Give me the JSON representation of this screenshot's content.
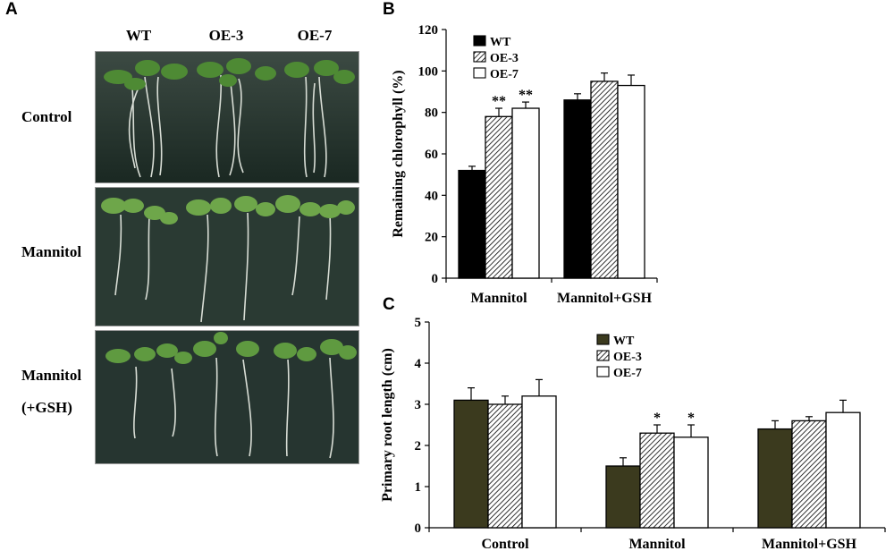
{
  "panelA": {
    "letter": "A",
    "columns": [
      "WT",
      "OE-3",
      "OE-7"
    ],
    "rows": [
      {
        "label": "Control",
        "label2": ""
      },
      {
        "label": "Mannitol",
        "label2": ""
      },
      {
        "label": "Mannitol",
        "label2": "(+GSH)"
      }
    ]
  },
  "chart_data": [
    {
      "panel": "B",
      "type": "bar",
      "categories": [
        "Mannitol",
        "Mannitol+GSH"
      ],
      "series": [
        {
          "name": "WT",
          "values": [
            52,
            86
          ],
          "errors": [
            2,
            3
          ]
        },
        {
          "name": "OE-3",
          "values": [
            78,
            95
          ],
          "errors": [
            4,
            4
          ]
        },
        {
          "name": "OE-7",
          "values": [
            82,
            93
          ],
          "errors": [
            3,
            5
          ]
        }
      ],
      "annotations": [
        {
          "category": "Mannitol",
          "series": "OE-3",
          "text": "**"
        },
        {
          "category": "Mannitol",
          "series": "OE-7",
          "text": "**"
        }
      ],
      "ylabel": "Remaining chlorophyll (%)",
      "xlabel": "",
      "ylim": [
        0,
        120
      ],
      "yticks": [
        "0",
        "20",
        "40",
        "60",
        "80",
        "100",
        "120"
      ],
      "legend": "top-left",
      "colors": {
        "WT": "#000000",
        "OE-3": "hatched",
        "OE-7": "#ffffff"
      }
    },
    {
      "panel": "C",
      "type": "bar",
      "categories": [
        "Control",
        "Mannitol",
        "Mannitol+GSH"
      ],
      "series": [
        {
          "name": "WT",
          "values": [
            3.1,
            1.5,
            2.4
          ],
          "errors": [
            0.3,
            0.2,
            0.2
          ]
        },
        {
          "name": "OE-3",
          "values": [
            3.0,
            2.3,
            2.6
          ],
          "errors": [
            0.2,
            0.2,
            0.1
          ]
        },
        {
          "name": "OE-7",
          "values": [
            3.2,
            2.2,
            2.8
          ],
          "errors": [
            0.4,
            0.3,
            0.3
          ]
        }
      ],
      "annotations": [
        {
          "category": "Mannitol",
          "series": "OE-3",
          "text": "*"
        },
        {
          "category": "Mannitol",
          "series": "OE-7",
          "text": "*"
        }
      ],
      "ylabel": "Primary root length (cm)",
      "xlabel": "",
      "ylim": [
        0,
        5
      ],
      "yticks": [
        "0",
        "1",
        "2",
        "3",
        "4",
        "5"
      ],
      "legend": "top-center",
      "colors": {
        "WT": "#3b3a1e",
        "OE-3": "hatched",
        "OE-7": "#ffffff"
      }
    }
  ]
}
